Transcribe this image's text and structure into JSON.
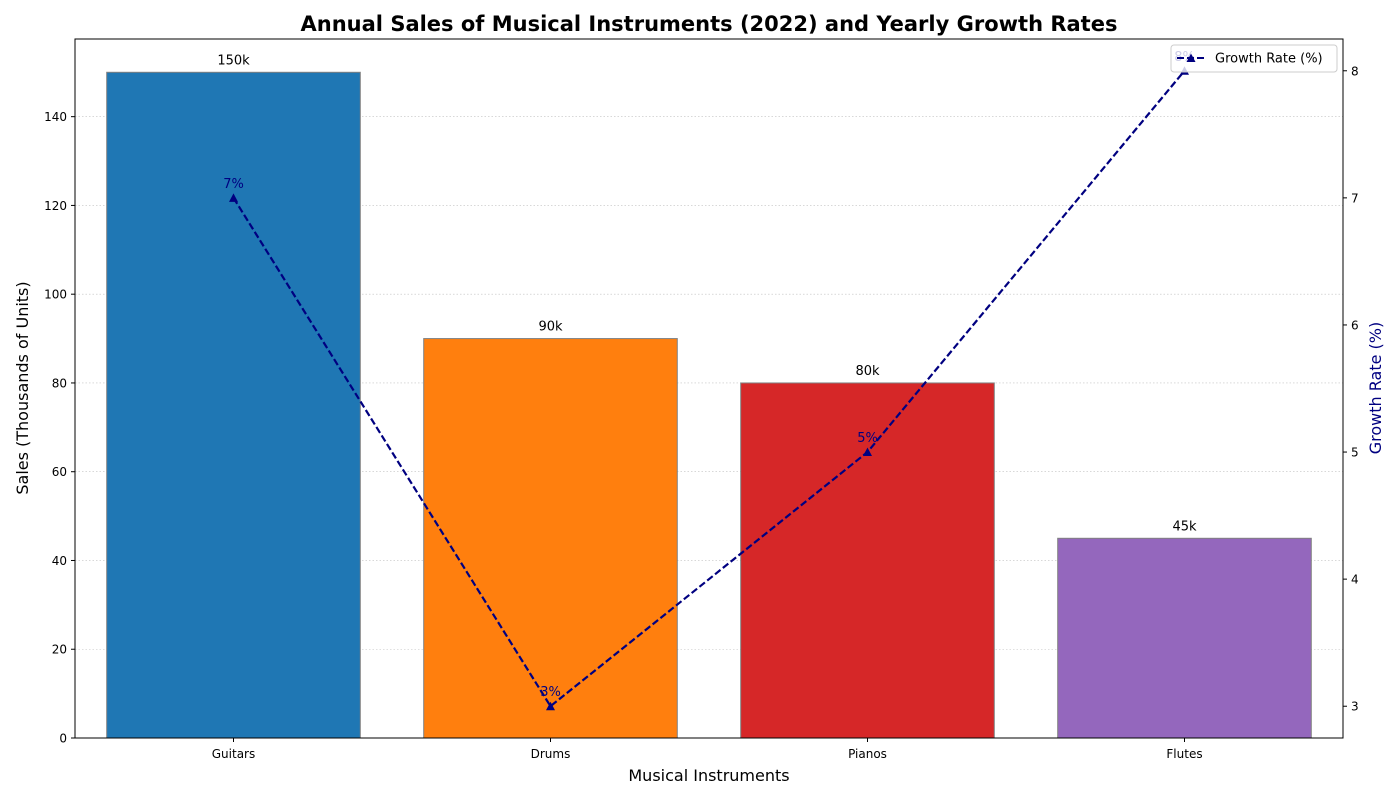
{
  "chart_data": {
    "type": "bar",
    "title": "Annual Sales of Musical Instruments (2022) and Yearly Growth Rates",
    "xlabel": "Musical Instruments",
    "ylabel": "Sales (Thousands of Units)",
    "y2label": "Growth Rate (%)",
    "categories": [
      "Guitars",
      "Drums",
      "Pianos",
      "Flutes"
    ],
    "values": [
      150,
      90,
      80,
      45
    ],
    "bar_labels": [
      "150k",
      "90k",
      "80k",
      "45k"
    ],
    "bar_colors": [
      "#1f77b4",
      "#ff7f0e",
      "#d62728",
      "#9467bd"
    ],
    "ylim": [
      0,
      157.5
    ],
    "yticks": [
      0,
      20,
      40,
      60,
      80,
      100,
      120,
      140
    ],
    "series": [
      {
        "name": "Growth Rate (%)",
        "axis": "right",
        "values": [
          7,
          3,
          5,
          8
        ],
        "point_labels": [
          "7%",
          "3%",
          "5%",
          "8%"
        ],
        "color": "#000080",
        "line_style": "dashed",
        "marker": "triangle"
      }
    ],
    "y2lim": [
      2.75,
      8.25
    ],
    "y2ticks": [
      3,
      4,
      5,
      6,
      7,
      8
    ],
    "grid": "horizontal-dotted",
    "legend_position": "top-right"
  }
}
